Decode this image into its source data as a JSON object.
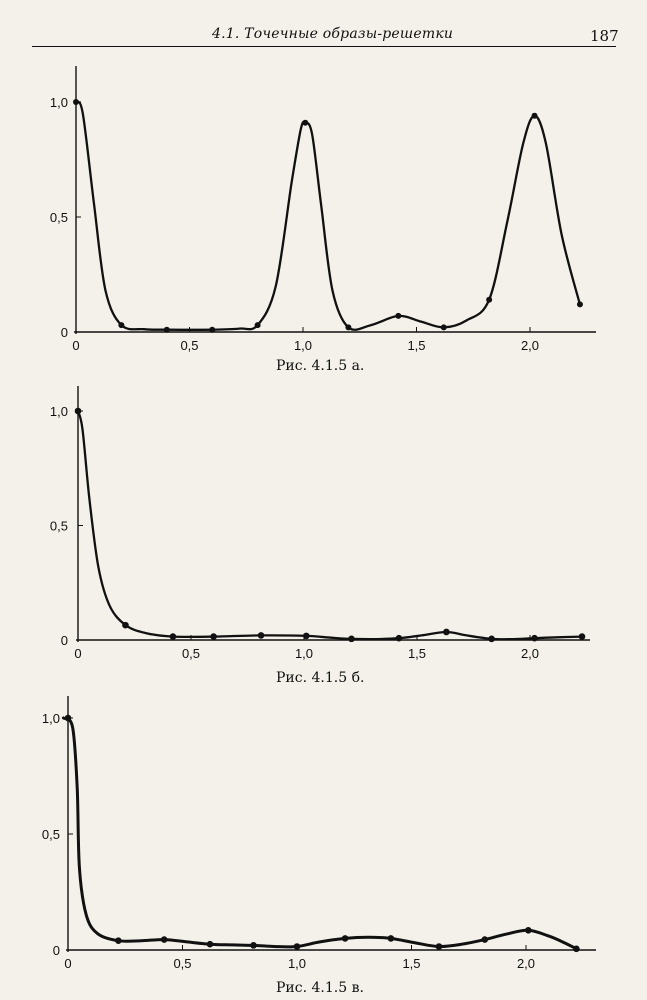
{
  "header": {
    "running_title": "4.1. Точечные образы-решетки",
    "page_number": "187"
  },
  "chart_data": [
    {
      "type": "line",
      "caption": "Рис. 4.1.5 а.",
      "x_ticks": [
        "0",
        "0,5",
        "1,0",
        "1,5",
        "2,0"
      ],
      "y_ticks": [
        "0",
        "0,5",
        "1,0"
      ],
      "xlim": [
        0,
        2.3
      ],
      "ylim": [
        0,
        1.1
      ],
      "x_tick_values": [
        0,
        0.5,
        1.0,
        1.5,
        2.0
      ],
      "y_tick_values": [
        0,
        0.5,
        1.0
      ],
      "series": [
        {
          "x": [
            0,
            0.2,
            0.4,
            0.6,
            0.8,
            1.01,
            1.2,
            1.42,
            1.62,
            1.82,
            2.02,
            2.22
          ],
          "y": [
            1.0,
            0.03,
            0.01,
            0.01,
            0.03,
            0.91,
            0.02,
            0.07,
            0.02,
            0.14,
            0.94,
            0.12
          ],
          "curve": [
            [
              0,
              1.0
            ],
            [
              0.03,
              0.95
            ],
            [
              0.08,
              0.55
            ],
            [
              0.13,
              0.18
            ],
            [
              0.2,
              0.03
            ],
            [
              0.3,
              0.012
            ],
            [
              0.4,
              0.01
            ],
            [
              0.6,
              0.01
            ],
            [
              0.72,
              0.015
            ],
            [
              0.8,
              0.03
            ],
            [
              0.88,
              0.2
            ],
            [
              0.95,
              0.65
            ],
            [
              0.99,
              0.88
            ],
            [
              1.01,
              0.91
            ],
            [
              1.04,
              0.86
            ],
            [
              1.08,
              0.55
            ],
            [
              1.13,
              0.18
            ],
            [
              1.2,
              0.02
            ],
            [
              1.3,
              0.03
            ],
            [
              1.42,
              0.07
            ],
            [
              1.52,
              0.045
            ],
            [
              1.62,
              0.02
            ],
            [
              1.72,
              0.05
            ],
            [
              1.82,
              0.14
            ],
            [
              1.9,
              0.48
            ],
            [
              1.97,
              0.82
            ],
            [
              2.02,
              0.94
            ],
            [
              2.07,
              0.82
            ],
            [
              2.14,
              0.42
            ],
            [
              2.22,
              0.12
            ]
          ]
        }
      ]
    },
    {
      "type": "line",
      "caption": "Рис. 4.1.5 б.",
      "x_ticks": [
        "0",
        "0,5",
        "1,0",
        "1,5",
        "2,0"
      ],
      "y_ticks": [
        "0",
        "0,5",
        "1,0"
      ],
      "xlim": [
        0,
        2.3
      ],
      "ylim": [
        0,
        1.1
      ],
      "x_tick_values": [
        0,
        0.5,
        1.0,
        1.5,
        2.0
      ],
      "y_tick_values": [
        0,
        0.5,
        1.0
      ],
      "series": [
        {
          "x": [
            0,
            0.21,
            0.42,
            0.6,
            0.81,
            1.01,
            1.21,
            1.42,
            1.63,
            1.83,
            2.02,
            2.23
          ],
          "y": [
            1.0,
            0.065,
            0.015,
            0.015,
            0.02,
            0.018,
            0.005,
            0.008,
            0.035,
            0.005,
            0.008,
            0.015
          ],
          "curve": [
            [
              0,
              1.0
            ],
            [
              0.02,
              0.92
            ],
            [
              0.05,
              0.62
            ],
            [
              0.09,
              0.32
            ],
            [
              0.14,
              0.15
            ],
            [
              0.21,
              0.065
            ],
            [
              0.3,
              0.03
            ],
            [
              0.42,
              0.015
            ],
            [
              0.6,
              0.015
            ],
            [
              0.81,
              0.02
            ],
            [
              1.01,
              0.018
            ],
            [
              1.12,
              0.01
            ],
            [
              1.21,
              0.005
            ],
            [
              1.32,
              0.004
            ],
            [
              1.42,
              0.008
            ],
            [
              1.52,
              0.02
            ],
            [
              1.63,
              0.035
            ],
            [
              1.72,
              0.02
            ],
            [
              1.83,
              0.005
            ],
            [
              1.93,
              0.004
            ],
            [
              2.02,
              0.008
            ],
            [
              2.12,
              0.012
            ],
            [
              2.23,
              0.015
            ]
          ]
        }
      ]
    },
    {
      "type": "line",
      "caption": "Рис. 4.1.5 в.",
      "x_ticks": [
        "0",
        "0,5",
        "1,0",
        "1,5",
        "2,0"
      ],
      "y_ticks": [
        "0",
        "0,5",
        "1,0"
      ],
      "xlim": [
        0,
        2.3
      ],
      "ylim": [
        0,
        1.1
      ],
      "x_tick_values": [
        0,
        0.5,
        1.0,
        1.5,
        2.0
      ],
      "y_tick_values": [
        0,
        0.5,
        1.0
      ],
      "series": [
        {
          "x": [
            0,
            0.22,
            0.42,
            0.62,
            0.81,
            1.0,
            1.21,
            1.41,
            1.62,
            1.82,
            2.01,
            2.22
          ],
          "y": [
            1.0,
            0.04,
            0.045,
            0.025,
            0.02,
            0.015,
            0.05,
            0.05,
            0.015,
            0.045,
            0.085,
            0.005
          ],
          "curve": [
            [
              -0.02,
              1.0
            ],
            [
              0.02,
              0.96
            ],
            [
              0.04,
              0.7
            ],
            [
              0.05,
              0.35
            ],
            [
              0.08,
              0.15
            ],
            [
              0.13,
              0.07
            ],
            [
              0.22,
              0.04
            ],
            [
              0.32,
              0.04
            ],
            [
              0.42,
              0.045
            ],
            [
              0.52,
              0.035
            ],
            [
              0.62,
              0.025
            ],
            [
              0.72,
              0.022
            ],
            [
              0.81,
              0.02
            ],
            [
              0.9,
              0.015
            ],
            [
              1.0,
              0.015
            ],
            [
              1.1,
              0.035
            ],
            [
              1.21,
              0.05
            ],
            [
              1.31,
              0.055
            ],
            [
              1.41,
              0.05
            ],
            [
              1.52,
              0.03
            ],
            [
              1.62,
              0.015
            ],
            [
              1.72,
              0.025
            ],
            [
              1.82,
              0.045
            ],
            [
              1.92,
              0.07
            ],
            [
              2.01,
              0.085
            ],
            [
              2.1,
              0.06
            ],
            [
              2.17,
              0.03
            ],
            [
              2.22,
              0.005
            ]
          ]
        }
      ]
    }
  ]
}
